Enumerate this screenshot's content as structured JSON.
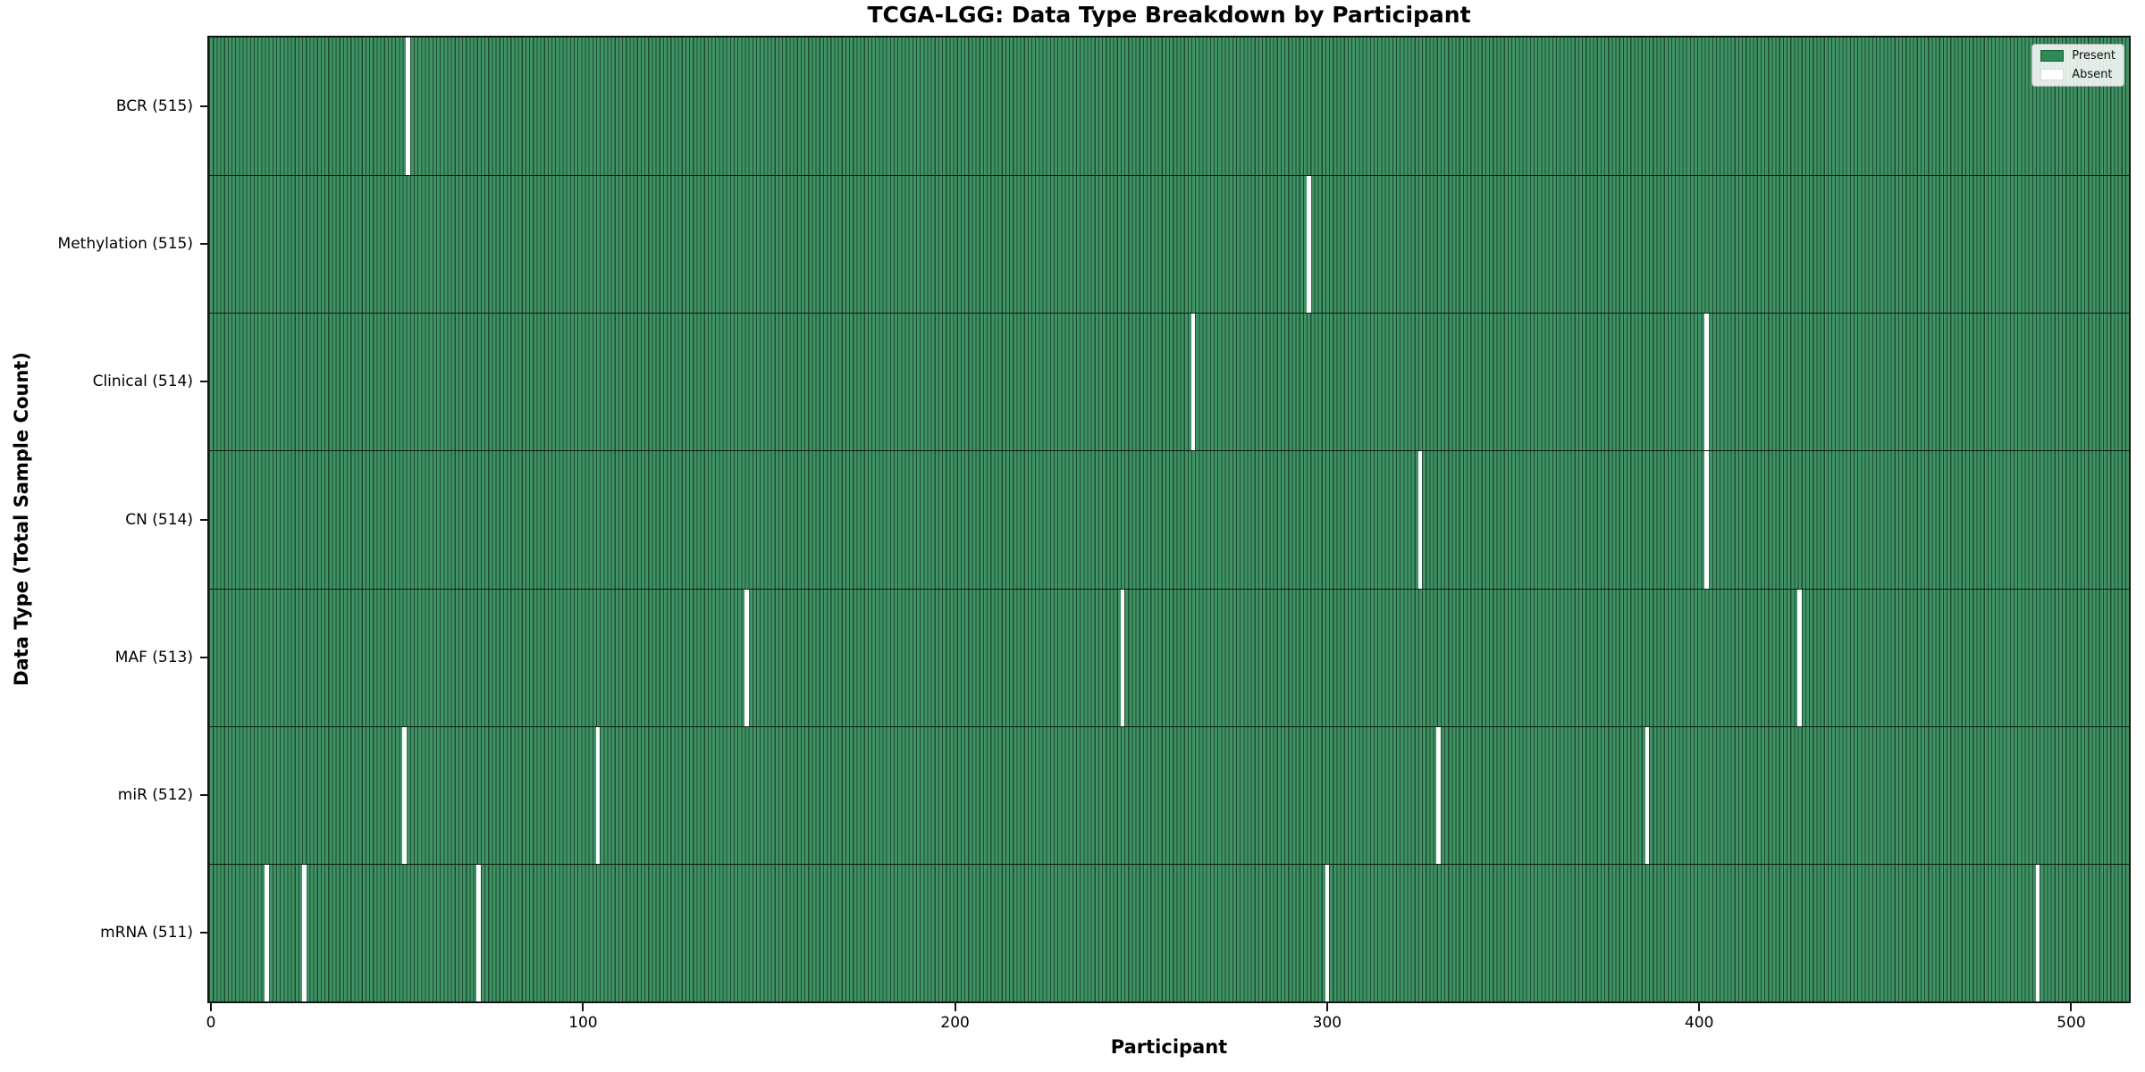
{
  "title": "TCGA-LGG: Data Type Breakdown by Participant",
  "axes": {
    "x_label": "Participant",
    "y_label": "Data Type (Total Sample Count)"
  },
  "legend": {
    "items": [
      {
        "label": "Present",
        "color": "#2e8b57"
      },
      {
        "label": "Absent",
        "color": "#ffffff"
      }
    ]
  },
  "colors": {
    "bar_fill": "#3f9365",
    "bar_edge": "#1e4b32",
    "absent": "#ffffff",
    "spine": "#141414",
    "present_swatch_edge": "#1d5c39",
    "absent_swatch_edge": "#dddddd"
  },
  "chart_data": {
    "type": "heatmap",
    "title": "TCGA-LGG: Data Type Breakdown by Participant",
    "xlabel": "Participant",
    "ylabel": "Data Type (Total Sample Count)",
    "legend_entries": [
      "Present",
      "Absent"
    ],
    "legend_position": "upper right",
    "n_participants": 516,
    "x_ticks": [
      0,
      100,
      200,
      300,
      400,
      500
    ],
    "x_range": [
      0,
      515
    ],
    "cell_values": "1 = present (green), 0 = absent (white)",
    "rows": [
      {
        "label": "BCR (515)",
        "data_type": "BCR",
        "total_samples": 515,
        "absent_participants": [
          53
        ]
      },
      {
        "label": "Methylation (515)",
        "data_type": "Methylation",
        "total_samples": 515,
        "absent_participants": [
          295
        ]
      },
      {
        "label": "Clinical (514)",
        "data_type": "Clinical",
        "total_samples": 514,
        "absent_participants": [
          264,
          402
        ]
      },
      {
        "label": "CN (514)",
        "data_type": "CN",
        "total_samples": 514,
        "absent_participants": [
          325,
          402
        ]
      },
      {
        "label": "MAF (513)",
        "data_type": "MAF",
        "total_samples": 513,
        "absent_participants": [
          144,
          245,
          427
        ]
      },
      {
        "label": "miR (512)",
        "data_type": "miR",
        "total_samples": 512,
        "absent_participants": [
          52,
          104,
          330,
          386
        ]
      },
      {
        "label": "mRNA (511)",
        "data_type": "mRNA",
        "total_samples": 511,
        "absent_participants": [
          15,
          25,
          72,
          300,
          491
        ]
      }
    ]
  }
}
